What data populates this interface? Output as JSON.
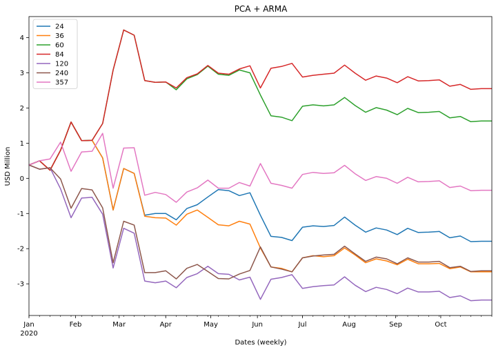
{
  "chart_data": {
    "type": "line",
    "title": "PCA + ARMA",
    "xlabel": "Dates (weekly)",
    "ylabel": "USD Million",
    "ylim": [
      -3.9,
      4.6
    ],
    "y_ticks": [
      -3,
      -2,
      -1,
      0,
      1,
      2,
      3,
      4
    ],
    "x_start": "2020-01-01",
    "x_end": "2020-11-04",
    "x_ticks": [
      {
        "date": "2020-01-01",
        "label": "Jan",
        "sublabel": "2020"
      },
      {
        "date": "2020-02-01",
        "label": "Feb"
      },
      {
        "date": "2020-03-01",
        "label": "Mar"
      },
      {
        "date": "2020-04-01",
        "label": "Apr"
      },
      {
        "date": "2020-05-01",
        "label": "May"
      },
      {
        "date": "2020-06-01",
        "label": "Jun"
      },
      {
        "date": "2020-07-01",
        "label": "Jul"
      },
      {
        "date": "2020-08-01",
        "label": "Aug"
      },
      {
        "date": "2020-09-01",
        "label": "Sep"
      },
      {
        "date": "2020-10-01",
        "label": "Oct"
      }
    ],
    "grid": false,
    "legend_position": "top-left",
    "x": [
      "2020-01-01",
      "2020-01-08",
      "2020-01-15",
      "2020-01-22",
      "2020-01-29",
      "2020-02-05",
      "2020-02-12",
      "2020-02-19",
      "2020-02-26",
      "2020-03-04",
      "2020-03-11",
      "2020-03-18",
      "2020-03-25",
      "2020-04-01",
      "2020-04-08",
      "2020-04-15",
      "2020-04-22",
      "2020-04-29",
      "2020-05-06",
      "2020-05-13",
      "2020-05-20",
      "2020-05-27",
      "2020-06-03",
      "2020-06-10",
      "2020-06-17",
      "2020-06-24",
      "2020-07-01",
      "2020-07-08",
      "2020-07-15",
      "2020-07-22",
      "2020-07-29",
      "2020-08-05",
      "2020-08-12",
      "2020-08-19",
      "2020-08-26",
      "2020-09-02",
      "2020-09-09",
      "2020-09-16",
      "2020-09-23",
      "2020-09-30",
      "2020-10-07",
      "2020-10-14",
      "2020-10-21",
      "2020-10-28",
      "2020-11-04"
    ],
    "series": [
      {
        "name": "24",
        "color": "#1f77b4",
        "values": [
          0.38,
          0.5,
          0.23,
          0.8,
          1.6,
          1.07,
          1.08,
          0.58,
          -0.9,
          0.28,
          0.14,
          -1.05,
          -1.0,
          -1.0,
          -1.18,
          -0.86,
          -0.75,
          -0.53,
          -0.32,
          -0.35,
          -0.49,
          -0.41,
          -1.05,
          -1.65,
          -1.68,
          -1.77,
          -1.39,
          -1.35,
          -1.37,
          -1.34,
          -1.1,
          -1.33,
          -1.53,
          -1.41,
          -1.47,
          -1.6,
          -1.42,
          -1.54,
          -1.53,
          -1.51,
          -1.69,
          -1.64,
          -1.8,
          -1.79,
          -1.79
        ]
      },
      {
        "name": "36",
        "color": "#ff7f0e",
        "values": [
          0.38,
          0.5,
          0.23,
          0.8,
          1.6,
          1.07,
          1.08,
          0.58,
          -0.9,
          0.28,
          0.14,
          -1.08,
          -1.12,
          -1.13,
          -1.33,
          -1.02,
          -0.9,
          -1.11,
          -1.32,
          -1.35,
          -1.22,
          -1.3,
          -1.98,
          -2.52,
          -2.56,
          -2.66,
          -2.26,
          -2.2,
          -2.23,
          -2.2,
          -1.98,
          -2.18,
          -2.4,
          -2.29,
          -2.35,
          -2.46,
          -2.3,
          -2.43,
          -2.43,
          -2.42,
          -2.57,
          -2.52,
          -2.66,
          -2.66,
          -2.66
        ]
      },
      {
        "name": "60",
        "color": "#2ca02c",
        "values": [
          0.38,
          0.5,
          0.23,
          0.8,
          1.6,
          1.07,
          1.08,
          1.56,
          3.08,
          4.22,
          4.07,
          2.78,
          2.73,
          2.74,
          2.52,
          2.83,
          2.95,
          3.19,
          2.96,
          2.93,
          3.08,
          3.0,
          2.37,
          1.78,
          1.74,
          1.64,
          2.05,
          2.09,
          2.06,
          2.09,
          2.3,
          2.07,
          1.88,
          2.01,
          1.94,
          1.81,
          1.99,
          1.87,
          1.88,
          1.9,
          1.72,
          1.76,
          1.61,
          1.63,
          1.63
        ]
      },
      {
        "name": "84",
        "color": "#d62728",
        "values": [
          0.38,
          0.5,
          0.23,
          0.8,
          1.6,
          1.07,
          1.08,
          1.56,
          3.08,
          4.22,
          4.07,
          2.78,
          2.73,
          2.74,
          2.57,
          2.86,
          2.97,
          3.21,
          2.99,
          2.96,
          3.11,
          3.2,
          2.57,
          3.13,
          3.18,
          3.27,
          2.88,
          2.93,
          2.96,
          2.99,
          3.22,
          2.99,
          2.79,
          2.91,
          2.85,
          2.72,
          2.89,
          2.77,
          2.78,
          2.8,
          2.62,
          2.67,
          2.53,
          2.55,
          2.55
        ]
      },
      {
        "name": "120",
        "color": "#9467bd",
        "values": [
          0.38,
          0.26,
          0.3,
          -0.3,
          -1.12,
          -0.56,
          -0.54,
          -1.02,
          -2.55,
          -1.42,
          -1.56,
          -2.92,
          -2.97,
          -2.92,
          -3.11,
          -2.82,
          -2.71,
          -2.5,
          -2.71,
          -2.73,
          -2.89,
          -2.81,
          -3.44,
          -2.87,
          -2.82,
          -2.74,
          -3.13,
          -3.08,
          -3.05,
          -3.03,
          -2.8,
          -3.04,
          -3.22,
          -3.1,
          -3.16,
          -3.28,
          -3.12,
          -3.23,
          -3.23,
          -3.21,
          -3.39,
          -3.34,
          -3.48,
          -3.46,
          -3.46
        ]
      },
      {
        "name": "240",
        "color": "#8c564b",
        "values": [
          0.38,
          0.26,
          0.3,
          -0.02,
          -0.85,
          -0.29,
          -0.33,
          -0.84,
          -2.4,
          -1.22,
          -1.33,
          -2.68,
          -2.68,
          -2.63,
          -2.86,
          -2.56,
          -2.45,
          -2.65,
          -2.85,
          -2.86,
          -2.72,
          -2.62,
          -1.95,
          -2.52,
          -2.58,
          -2.66,
          -2.26,
          -2.21,
          -2.18,
          -2.16,
          -1.93,
          -2.15,
          -2.36,
          -2.24,
          -2.29,
          -2.43,
          -2.26,
          -2.38,
          -2.38,
          -2.36,
          -2.54,
          -2.5,
          -2.65,
          -2.63,
          -2.63
        ]
      },
      {
        "name": "357",
        "color": "#e377c2",
        "values": [
          0.38,
          0.5,
          0.55,
          1.03,
          0.2,
          0.75,
          0.77,
          1.28,
          -0.28,
          0.86,
          0.87,
          -0.48,
          -0.4,
          -0.46,
          -0.68,
          -0.39,
          -0.27,
          -0.05,
          -0.28,
          -0.28,
          -0.12,
          -0.22,
          0.42,
          -0.14,
          -0.2,
          -0.28,
          0.11,
          0.17,
          0.14,
          0.16,
          0.37,
          0.13,
          -0.06,
          0.05,
          0.0,
          -0.14,
          0.03,
          -0.1,
          -0.09,
          -0.07,
          -0.26,
          -0.22,
          -0.35,
          -0.34,
          -0.34
        ]
      }
    ]
  }
}
